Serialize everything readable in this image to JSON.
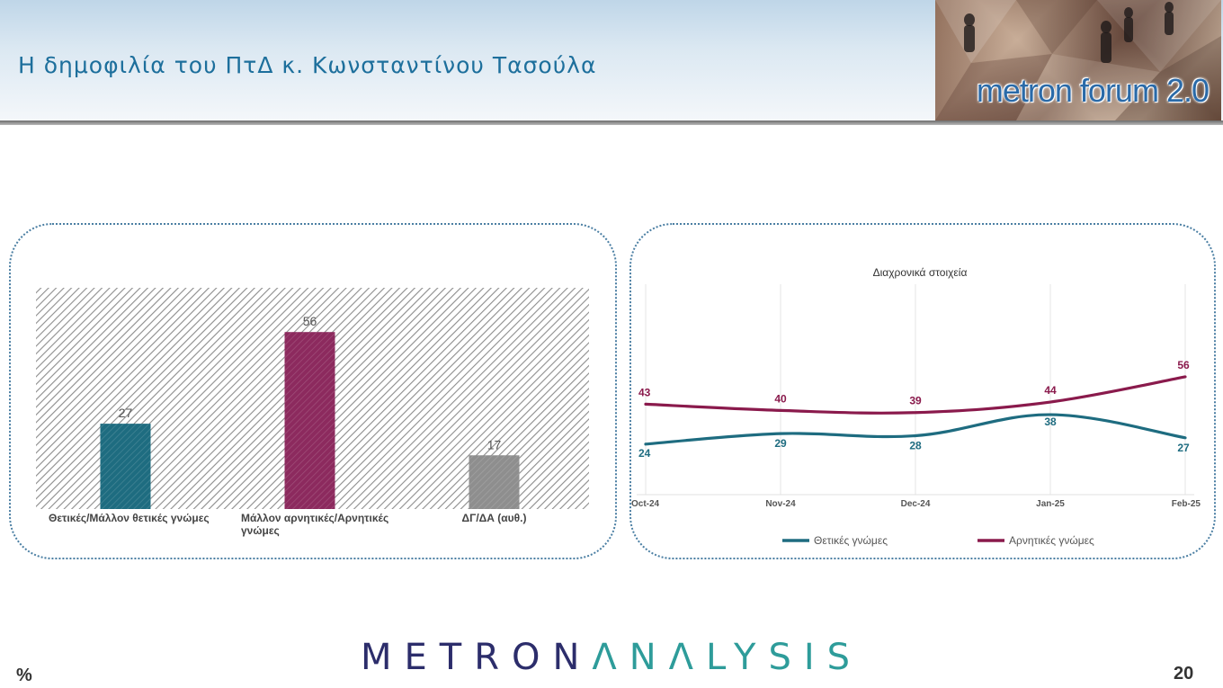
{
  "header": {
    "title": "Η δημοφιλία του ΠτΔ κ. Κωνσταντίνου Τασούλα",
    "logo_text": "metron forum 2.0"
  },
  "chart_data": [
    {
      "type": "bar",
      "categories": [
        "Θετικές/Μάλλον θετικές γνώμες",
        "Μάλλον αρνητικές/Αρνητικές γνώμες",
        "ΔΓ/ΔΑ (αυθ.)"
      ],
      "category_lines": [
        [
          "Θετικές/Μάλλον θετικές γνώμες"
        ],
        [
          "Μάλλον αρνητικές/Αρνητικές",
          "γνώμες"
        ],
        [
          "ΔΓ/ΔΑ (αυθ.)"
        ]
      ],
      "values": [
        27,
        56,
        17
      ],
      "colors": [
        "#1e6c80",
        "#8c2a5e",
        "#8e8e8e"
      ],
      "ylim": [
        0,
        70
      ],
      "grid": false
    },
    {
      "type": "line",
      "title": "Διαχρονικά στοιχεία",
      "x": [
        "Oct-24",
        "Nov-24",
        "Dec-24",
        "Jan-25",
        "Feb-25"
      ],
      "series": [
        {
          "name": "Θετικές γνώμες",
          "values": [
            24,
            29,
            28,
            38,
            27
          ],
          "color": "#1e6c80"
        },
        {
          "name": "Αρνητικές γνώμες",
          "values": [
            43,
            40,
            39,
            44,
            56
          ],
          "color": "#8a1a4c"
        }
      ],
      "ylim": [
        0,
        100
      ],
      "grid": true,
      "legend": "bottom"
    }
  ],
  "footer": {
    "unit": "%",
    "brand_part1": "METRON",
    "brand_part2": "ΛNΛLYSIS",
    "page_number": "20"
  },
  "colors": {
    "title": "#1d6f9c",
    "brand_dark": "#2c2d6b",
    "brand_teal": "#2e9c9a"
  }
}
